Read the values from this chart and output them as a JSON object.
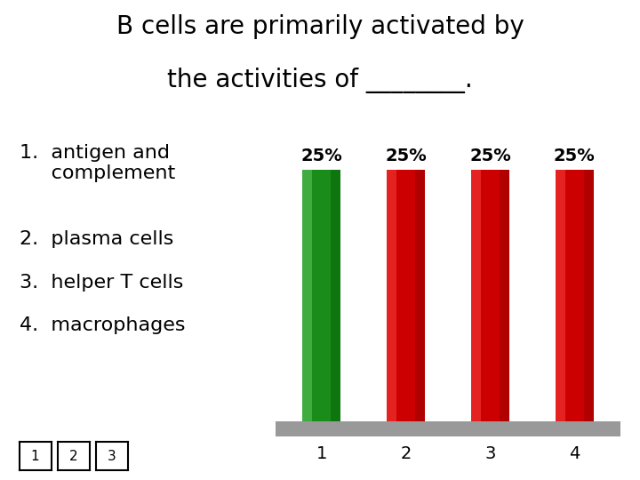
{
  "title_line1": "B cells are primarily activated by",
  "title_line2": "the activities of ________.",
  "categories": [
    "1",
    "2",
    "3",
    "4"
  ],
  "values": [
    25,
    25,
    25,
    25
  ],
  "bar_colors": [
    "#1a8c1a",
    "#cc0000",
    "#cc0000",
    "#cc0000"
  ],
  "bar_labels": [
    "25%",
    "25%",
    "25%",
    "25%"
  ],
  "list_items": [
    "1.  antigen and\n     complement",
    "2.  plasma cells",
    "3.  helper T cells",
    "4.  macrophages"
  ],
  "footer_boxes": [
    "1",
    "2",
    "3"
  ],
  "background_color": "#ffffff",
  "base_color": "#999999",
  "title_fontsize": 20,
  "list_fontsize": 16,
  "bar_label_fontsize": 14,
  "tick_fontsize": 14
}
